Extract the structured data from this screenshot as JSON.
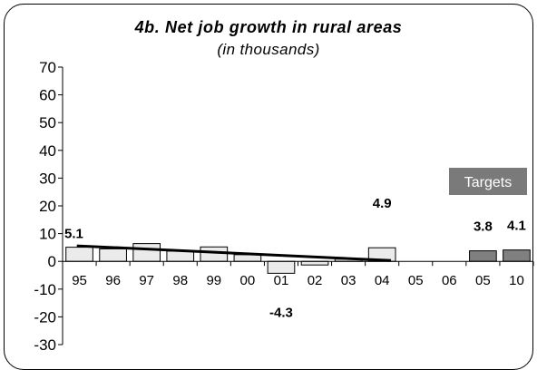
{
  "title": "4b. Net job growth in rural areas",
  "subtitle": "(in thousands)",
  "targets_label": "Targets",
  "colors": {
    "historical_bar": "#ebebeb",
    "target_bar": "#808080",
    "trend_line": "#000000",
    "targets_box": "#7a7a7a"
  },
  "chart_data": {
    "type": "bar",
    "title": "4b. Net job growth in rural areas",
    "subtitle": "(in thousands)",
    "categories": [
      "95",
      "96",
      "97",
      "98",
      "99",
      "00",
      "01",
      "02",
      "03",
      "04",
      "05",
      "06",
      "05",
      "10"
    ],
    "values": [
      5.1,
      4.5,
      6.4,
      3.7,
      5.2,
      2.4,
      -4.3,
      -1.3,
      0.8,
      4.9,
      null,
      null,
      3.8,
      4.1
    ],
    "bar_kind": [
      "historical",
      "historical",
      "historical",
      "historical",
      "historical",
      "historical",
      "historical",
      "historical",
      "historical",
      "historical",
      "none",
      "none",
      "target",
      "target"
    ],
    "data_labels": [
      {
        "index": 0,
        "text": "5.1"
      },
      {
        "index": 6,
        "text": "-4.3"
      },
      {
        "index": 9,
        "text": "4.9"
      },
      {
        "index": 12,
        "text": "3.8"
      },
      {
        "index": 13,
        "text": "4.1"
      }
    ],
    "trend_line": {
      "start_index": 0,
      "end_index": 9,
      "start_value": 5.6,
      "end_value": 0.3
    },
    "ylim": [
      -30,
      70
    ],
    "yticks": [
      70,
      60,
      50,
      40,
      30,
      20,
      10,
      0,
      -10,
      -20,
      -30
    ],
    "grid": false,
    "xlabel": "",
    "ylabel": ""
  }
}
